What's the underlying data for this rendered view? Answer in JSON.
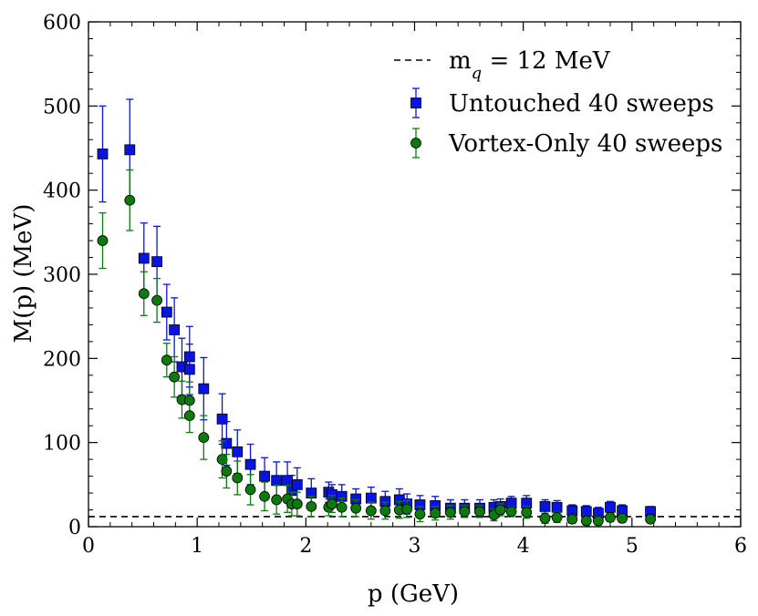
{
  "chart_data": {
    "type": "scatter",
    "xlabel": "p (GeV)",
    "ylabel": "M(p) (MeV)",
    "xlim": [
      0,
      6
    ],
    "ylim": [
      0,
      600
    ],
    "xticks": [
      0,
      1,
      2,
      3,
      4,
      5,
      6
    ],
    "yticks": [
      0,
      100,
      200,
      300,
      400,
      500,
      600
    ],
    "xtick_labels": [
      "0",
      "1",
      "2",
      "3",
      "4",
      "5",
      "6"
    ],
    "ytick_labels": [
      "0",
      "100",
      "200",
      "300",
      "400",
      "500",
      "600"
    ],
    "grid": false,
    "legend_position": "top-right",
    "reference_line": {
      "label": "m_q = 12 MeV",
      "label_main": "m",
      "label_sub": "q",
      "label_rest": " = 12 MeV",
      "value": 12,
      "style": "dashed",
      "color": "#000000"
    },
    "series": [
      {
        "name": "Untouched 40 sweeps",
        "marker": "square",
        "color": "#0a14e0",
        "points": [
          [
            0.13,
            443,
            57
          ],
          [
            0.38,
            448,
            60
          ],
          [
            0.51,
            319,
            42
          ],
          [
            0.63,
            315,
            42
          ],
          [
            0.72,
            255,
            33
          ],
          [
            0.79,
            234,
            38
          ],
          [
            0.86,
            190,
            34
          ],
          [
            0.93,
            202,
            36
          ],
          [
            0.93,
            187,
            30
          ],
          [
            1.06,
            164,
            37
          ],
          [
            1.23,
            128,
            30
          ],
          [
            1.27,
            99,
            26
          ],
          [
            1.37,
            89,
            26
          ],
          [
            1.49,
            74,
            24
          ],
          [
            1.62,
            60,
            22
          ],
          [
            1.73,
            55,
            22
          ],
          [
            1.83,
            55,
            22
          ],
          [
            1.87,
            43,
            18
          ],
          [
            1.92,
            50,
            20
          ],
          [
            2.05,
            40,
            17
          ],
          [
            2.21,
            41,
            12
          ],
          [
            2.24,
            38,
            12
          ],
          [
            2.33,
            36,
            14
          ],
          [
            2.46,
            33,
            12
          ],
          [
            2.6,
            34,
            13
          ],
          [
            2.73,
            30,
            12
          ],
          [
            2.86,
            32,
            13
          ],
          [
            2.93,
            27,
            12
          ],
          [
            3.05,
            26,
            11
          ],
          [
            3.19,
            25,
            11
          ],
          [
            3.33,
            22,
            10
          ],
          [
            3.46,
            22,
            10
          ],
          [
            3.6,
            22,
            10
          ],
          [
            3.73,
            23,
            9
          ],
          [
            3.79,
            24,
            9
          ],
          [
            3.89,
            28,
            8
          ],
          [
            4.03,
            28,
            9
          ],
          [
            4.2,
            24,
            8
          ],
          [
            4.31,
            23,
            8
          ],
          [
            4.45,
            19,
            7
          ],
          [
            4.58,
            18,
            7
          ],
          [
            4.69,
            16,
            7
          ],
          [
            4.8,
            23,
            7
          ],
          [
            4.91,
            19,
            7
          ],
          [
            5.17,
            18,
            6
          ]
        ]
      },
      {
        "name": "Vortex-Only 40 sweeps",
        "marker": "circle",
        "color": "#0d7a0d",
        "points": [
          [
            0.13,
            340,
            33
          ],
          [
            0.38,
            388,
            36
          ],
          [
            0.51,
            277,
            26
          ],
          [
            0.63,
            269,
            26
          ],
          [
            0.72,
            198,
            20
          ],
          [
            0.79,
            178,
            24
          ],
          [
            0.86,
            151,
            22
          ],
          [
            0.93,
            150,
            22
          ],
          [
            0.93,
            132,
            20
          ],
          [
            1.06,
            106,
            26
          ],
          [
            1.23,
            80,
            22
          ],
          [
            1.27,
            66,
            20
          ],
          [
            1.37,
            58,
            20
          ],
          [
            1.49,
            44,
            18
          ],
          [
            1.62,
            36,
            17
          ],
          [
            1.73,
            32,
            17
          ],
          [
            1.83,
            33,
            16
          ],
          [
            1.87,
            27,
            14
          ],
          [
            1.92,
            27,
            14
          ],
          [
            2.05,
            24,
            12
          ],
          [
            2.21,
            23,
            10
          ],
          [
            2.24,
            27,
            10
          ],
          [
            2.33,
            23,
            11
          ],
          [
            2.46,
            22,
            10
          ],
          [
            2.6,
            19,
            10
          ],
          [
            2.73,
            19,
            10
          ],
          [
            2.86,
            20,
            10
          ],
          [
            2.93,
            21,
            10
          ],
          [
            3.05,
            15,
            9
          ],
          [
            3.19,
            16,
            8
          ],
          [
            3.33,
            17,
            8
          ],
          [
            3.46,
            18,
            7
          ],
          [
            3.6,
            18,
            7
          ],
          [
            3.73,
            14,
            7
          ],
          [
            3.79,
            20,
            7
          ],
          [
            3.89,
            18,
            6
          ],
          [
            4.03,
            17,
            7
          ],
          [
            4.2,
            10,
            6
          ],
          [
            4.31,
            11,
            6
          ],
          [
            4.45,
            9,
            5
          ],
          [
            4.58,
            7,
            5
          ],
          [
            4.69,
            7,
            5
          ],
          [
            4.8,
            11,
            5
          ],
          [
            4.91,
            10,
            5
          ],
          [
            5.17,
            9,
            4
          ]
        ]
      }
    ]
  }
}
